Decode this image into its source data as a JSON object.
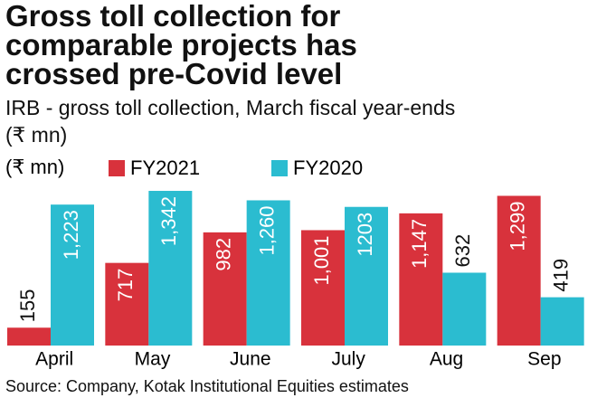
{
  "chart_data": {
    "type": "bar",
    "title": "Gross toll collection for comparable projects has crossed pre-Covid level",
    "subtitle": "IRB - gross toll collection, March fiscal year-ends (₹ mn)",
    "unit_label": "(₹ mn)",
    "source": "Source: Company, Kotak Institutional Equities estimates",
    "categories": [
      "April",
      "May",
      "June",
      "July",
      "Aug",
      "Sep"
    ],
    "series": [
      {
        "name": "FY2021",
        "color": "#d8323c",
        "values": [
          155,
          717,
          982,
          1001,
          1147,
          1299
        ],
        "value_labels": [
          "155",
          "717",
          "982",
          "1,001",
          "1,147",
          "1,299"
        ]
      },
      {
        "name": "FY2020",
        "color": "#2bbcd0",
        "values": [
          1223,
          1342,
          1260,
          1203,
          632,
          419
        ],
        "value_labels": [
          "1,223",
          "1,342",
          "1,260",
          "1203",
          "632",
          "419"
        ]
      }
    ],
    "ylim": [
      0,
      1350
    ]
  }
}
